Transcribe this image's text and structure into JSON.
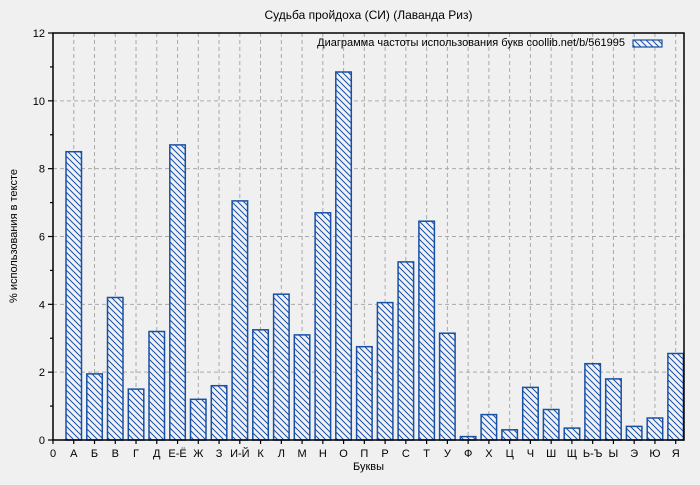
{
  "title": "Судьба пройдоха (СИ) (Лаванда Риз)",
  "legend": {
    "label": "Диаграмма частоты использования букв coollib.net/b/561995",
    "swatch_icon": "hatched-bar-swatch"
  },
  "axes": {
    "xlabel": "Буквы",
    "ylabel": "% использования в тексте",
    "origin_label": "0",
    "yticks": [
      0,
      2,
      4,
      6,
      8,
      10,
      12
    ]
  },
  "colors": {
    "bar_edge": "#1850a6",
    "bar_fill": "#f2f2f2",
    "background": "#f0f0f0",
    "grid": "#a9a9a9",
    "border": "#000000",
    "text": "#000000"
  },
  "chart_data": {
    "type": "bar",
    "title": "Судьба пройдоха (СИ) (Лаванда Риз)",
    "legend_label": "Диаграмма частоты использования букв coollib.net/b/561995",
    "xlabel": "Буквы",
    "ylabel": "% использования в тексте",
    "origin_label": "0",
    "categories": [
      "А",
      "Б",
      "В",
      "Г",
      "Д",
      "Е-Ё",
      "Ж",
      "З",
      "И-Й",
      "К",
      "Л",
      "М",
      "Н",
      "О",
      "П",
      "Р",
      "С",
      "Т",
      "У",
      "Ф",
      "Х",
      "Ц",
      "Ч",
      "Ш",
      "Щ",
      "Ь-Ъ",
      "Ы",
      "Э",
      "Ю",
      "Я"
    ],
    "values": [
      8.5,
      1.95,
      4.2,
      1.5,
      3.2,
      8.7,
      1.2,
      1.6,
      7.05,
      3.25,
      4.3,
      3.1,
      6.7,
      10.85,
      2.75,
      4.05,
      5.25,
      6.45,
      3.15,
      0.1,
      0.75,
      0.3,
      1.55,
      0.9,
      0.35,
      2.25,
      1.8,
      0.4,
      0.65,
      2.55
    ],
    "ylim": [
      0,
      12
    ],
    "xlim": [
      0,
      30.4
    ],
    "ytick_step": 2,
    "y_minor_ticks": true,
    "grid": "dashed",
    "bar_style": "diagonal-hatch",
    "legend_position": "top-right-inside"
  }
}
